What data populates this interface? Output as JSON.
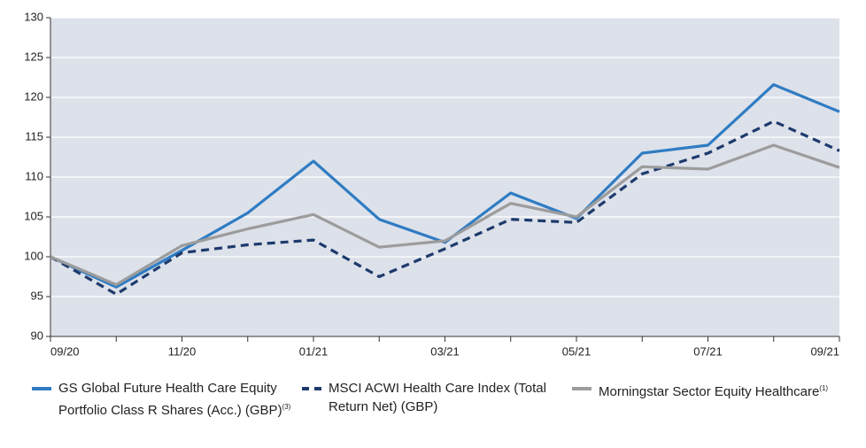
{
  "chart_data": {
    "type": "line",
    "categories": [
      "09/20",
      null,
      "11/20",
      null,
      "01/21",
      null,
      "03/21",
      null,
      "05/21",
      null,
      "07/21",
      null,
      "09/21"
    ],
    "series": [
      {
        "name": "GS Global Future Health Care Equity Portfolio Class R Shares (Acc.) (GBP)",
        "footnote": "(3)",
        "color": "#2f7cc3",
        "dashed": false,
        "values": [
          100,
          96.2,
          100.8,
          105.5,
          112,
          104.7,
          101.8,
          108,
          104.8,
          113,
          114,
          121.6,
          118.2
        ]
      },
      {
        "name": "MSCI ACWI Health Care Index (Total Return Net) (GBP)",
        "color": "#1d3a6c",
        "dashed": true,
        "values": [
          100,
          95.3,
          100.5,
          101.5,
          102.1,
          97.5,
          101,
          104.7,
          104.3,
          110.4,
          113,
          117,
          113.3
        ]
      },
      {
        "name": "Morningstar Sector Equity Healthcare",
        "footnote": "(1)",
        "color": "#9c9c9c",
        "dashed": false,
        "values": [
          100,
          96.5,
          101.4,
          103.5,
          105.3,
          101.2,
          102,
          106.7,
          105,
          111.3,
          111,
          114,
          111.2
        ]
      }
    ],
    "ylim": [
      90,
      130
    ],
    "yticks": [
      90,
      95,
      100,
      105,
      110,
      115,
      120,
      125,
      130
    ],
    "grid": true
  }
}
